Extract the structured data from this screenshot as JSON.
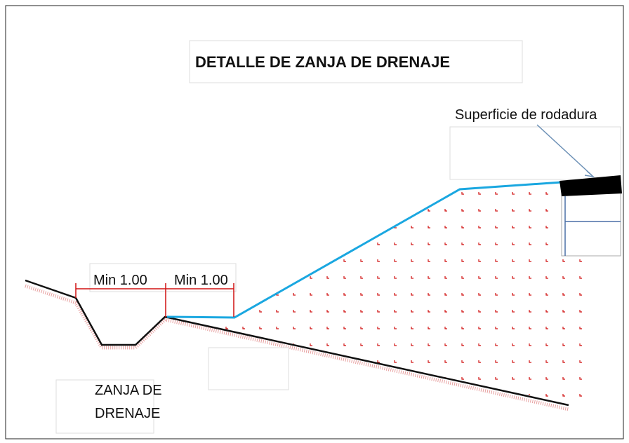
{
  "title": "DETALLE DE ZANJA DE DRENAJE",
  "labels": {
    "surface": "Superficie de rodadura",
    "width_left": "Min 1.00",
    "width_right": "Min 1.00",
    "ditch_line1": "ZANJA DE",
    "ditch_line2": "DRENAJE"
  }
}
